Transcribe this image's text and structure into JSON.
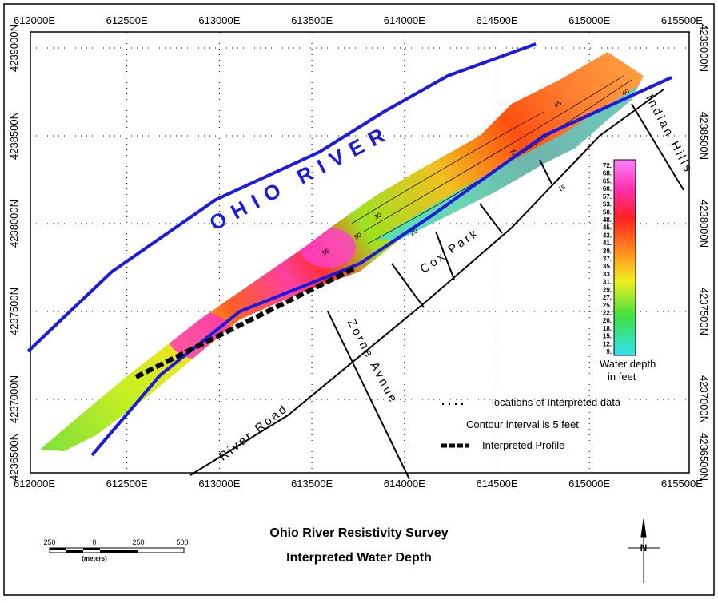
{
  "map": {
    "easting_labels": [
      "612000E",
      "612500E",
      "613000E",
      "613500E",
      "614000E",
      "614500E",
      "615000E",
      "615500E"
    ],
    "northing_labels": [
      "4239000N",
      "4238500N",
      "4238000N",
      "4237500N",
      "4237000N",
      "4236500N"
    ],
    "features": {
      "river": "OHIO RIVER",
      "park": "Cox Park",
      "zorne": "Zorne Avnue",
      "river_road": "River Road",
      "indian_hills": "Indian Hills"
    },
    "contour_labels": [
      "35",
      "30",
      "20",
      "15",
      "40",
      "45",
      "50",
      "55"
    ],
    "colorbar": {
      "labels": [
        "72.",
        "68.",
        "65.",
        "60.",
        "57.",
        "53.",
        "50.",
        "48.",
        "45.",
        "43.",
        "41.",
        "39.",
        "37.",
        "35.",
        "33.",
        "31.",
        "29.",
        "27.",
        "25.",
        "22.",
        "20.",
        "18.",
        "15.",
        "12.",
        "9."
      ],
      "title": [
        "Water depth",
        "in feet"
      ]
    },
    "legend": {
      "points": "locations of Interpreted data",
      "contour": "Contour interval is 5 feet",
      "profile": "Interpreted Profile"
    },
    "title": [
      "Ohio River Resistivity Survey",
      "Interpreted Water Depth"
    ],
    "scale": {
      "labels": [
        "250",
        "0",
        "250",
        "500"
      ],
      "unit": "(meters)"
    },
    "north": "N"
  }
}
